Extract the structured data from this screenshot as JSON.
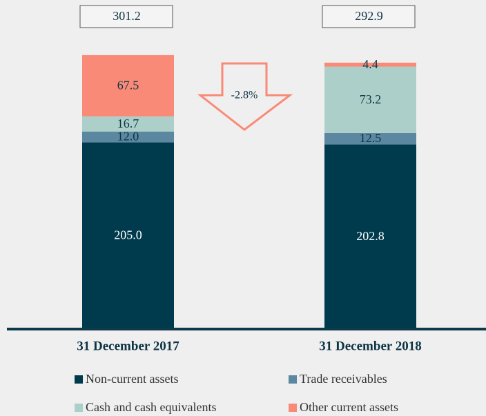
{
  "chart_data": {
    "type": "stacked_bar",
    "categories": [
      "31 December 2017",
      "31 December 2018"
    ],
    "series": [
      {
        "name": "Non-current assets",
        "color": "#003a4d",
        "values": [
          205.0,
          202.8
        ],
        "value_labels": [
          "205.0",
          "202.8"
        ]
      },
      {
        "name": "Trade receivables",
        "color": "#5b87a0",
        "values": [
          12.0,
          12.5
        ],
        "value_labels": [
          "12.0",
          "12.5"
        ]
      },
      {
        "name": "Cash and cash equivalents",
        "color": "#acd0c9",
        "values": [
          16.7,
          73.2
        ]
      },
      {
        "name": "Other current assets",
        "color": "#f98a77",
        "values": [
          67.5,
          4.4
        ]
      }
    ],
    "totals": [
      301.2,
      292.9
    ],
    "annotation": "-2.8%",
    "ylim": [
      0,
      300
    ]
  }
}
